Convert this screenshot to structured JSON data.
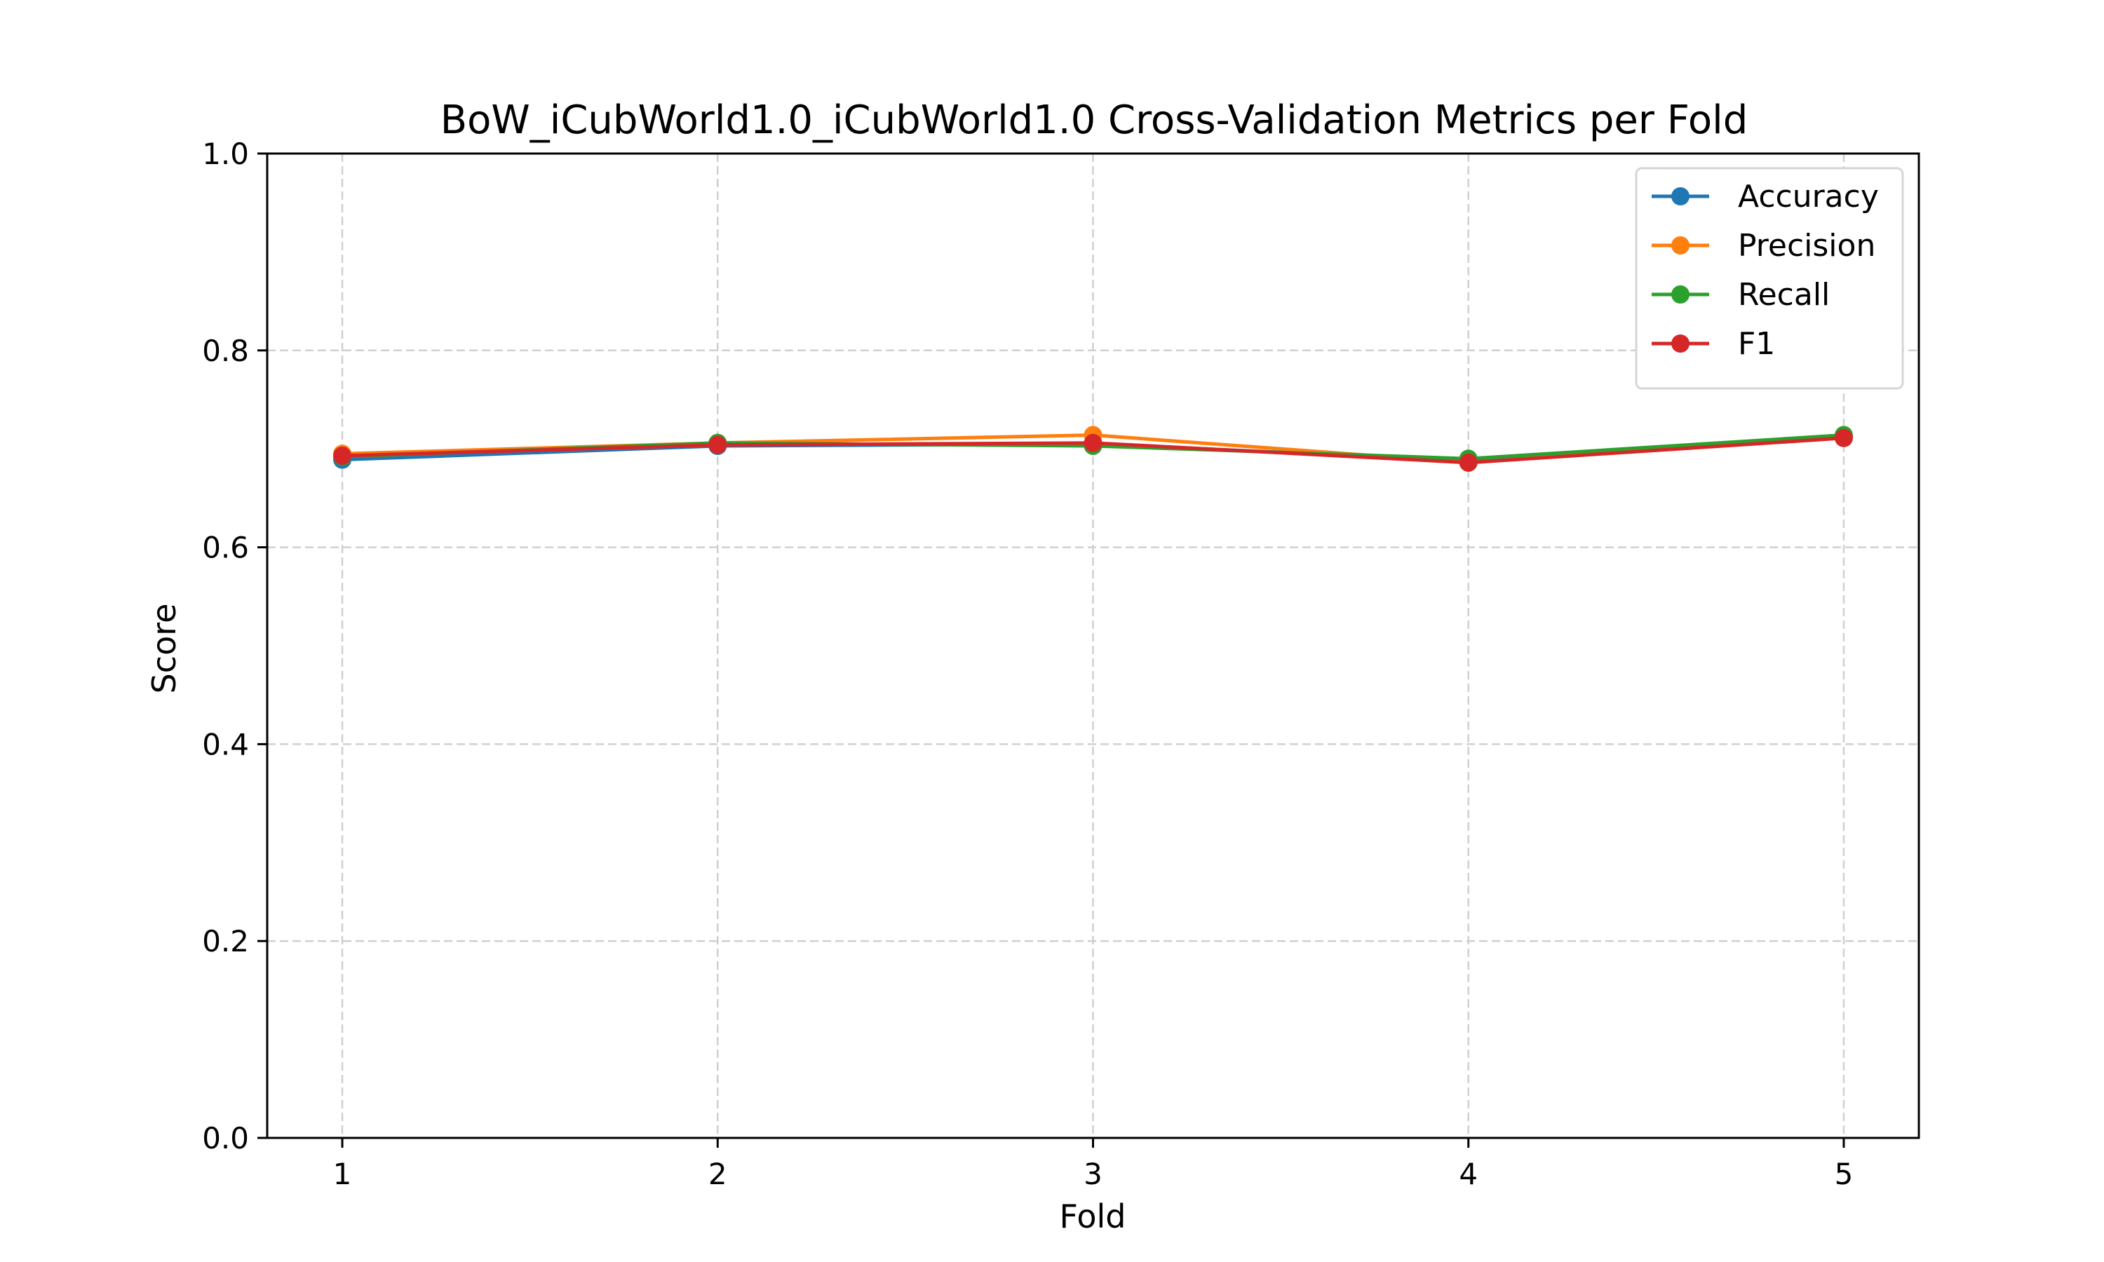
{
  "chart_data": {
    "type": "line",
    "title": "BoW_iCubWorld1.0_iCubWorld1.0 Cross-Validation Metrics per Fold",
    "xlabel": "Fold",
    "ylabel": "Score",
    "x": [
      1,
      2,
      3,
      4,
      5
    ],
    "xticks": [
      "1",
      "2",
      "3",
      "4",
      "5"
    ],
    "ylim": [
      0.0,
      1.0
    ],
    "yticks": [
      "0.0",
      "0.2",
      "0.4",
      "0.6",
      "0.8",
      "1.0"
    ],
    "grid": true,
    "legend_position": "top-right",
    "series": [
      {
        "name": "Accuracy",
        "color": "#1f77b4",
        "values": [
          0.689,
          0.703,
          0.705,
          0.688,
          0.712
        ]
      },
      {
        "name": "Precision",
        "color": "#ff7f0e",
        "values": [
          0.695,
          0.706,
          0.714,
          0.686,
          0.712
        ]
      },
      {
        "name": "Recall",
        "color": "#2ca02c",
        "values": [
          0.692,
          0.706,
          0.703,
          0.69,
          0.714
        ]
      },
      {
        "name": "F1",
        "color": "#d62728",
        "values": [
          0.693,
          0.704,
          0.706,
          0.686,
          0.711
        ]
      }
    ]
  }
}
